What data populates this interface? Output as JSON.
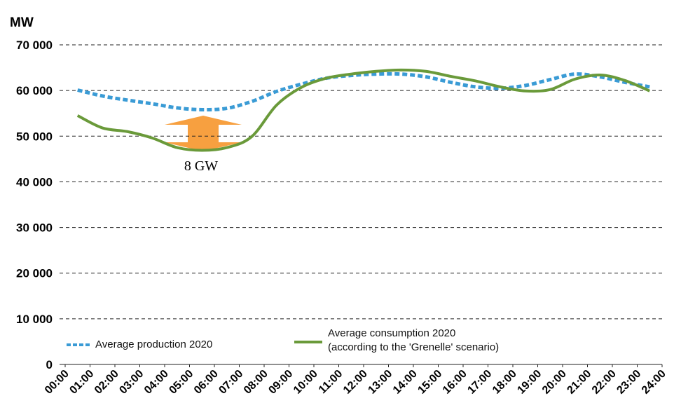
{
  "chart_data": {
    "type": "line",
    "ylabel": "MW",
    "x": [
      0.5,
      1.5,
      2.5,
      3.5,
      4.5,
      5.5,
      6.5,
      7.5,
      8.5,
      9.5,
      10.5,
      11.5,
      12.5,
      13.5,
      14.5,
      15.5,
      16.5,
      17.5,
      18.5,
      19.5,
      20.5,
      21.5,
      22.5,
      23.5
    ],
    "series": [
      {
        "name": "Average production 2020",
        "color": "#3a9bd5",
        "dash": true,
        "values": [
          60100,
          58800,
          57900,
          57100,
          56200,
          55800,
          56100,
          57600,
          59800,
          61400,
          62700,
          63300,
          63600,
          63600,
          63000,
          61800,
          60800,
          60500,
          61100,
          62400,
          63600,
          63000,
          61800,
          60800
        ]
      },
      {
        "name": "Average consumption 2020\n(according to the 'Grenelle' scenario)",
        "color": "#6a9a3a",
        "dash": false,
        "values": [
          54500,
          51800,
          51000,
          49600,
          47500,
          46900,
          47500,
          49900,
          56800,
          60700,
          62700,
          63600,
          64200,
          64500,
          64200,
          63100,
          62100,
          60800,
          59900,
          60200,
          62500,
          63400,
          62200,
          59900
        ]
      }
    ],
    "annotation": "8 GW",
    "xlim": [
      0,
      24
    ],
    "xticks": [
      {
        "value": 0,
        "label": "00:00"
      },
      {
        "value": 1,
        "label": "01:00"
      },
      {
        "value": 2,
        "label": "02:00"
      },
      {
        "value": 3,
        "label": "03:00"
      },
      {
        "value": 4,
        "label": "04:00"
      },
      {
        "value": 5,
        "label": "05:00"
      },
      {
        "value": 6,
        "label": "06:00"
      },
      {
        "value": 7,
        "label": "07:00"
      },
      {
        "value": 8,
        "label": "08:00"
      },
      {
        "value": 9,
        "label": "09:00"
      },
      {
        "value": 10,
        "label": "10:00"
      },
      {
        "value": 11,
        "label": "11:00"
      },
      {
        "value": 12,
        "label": "12:00"
      },
      {
        "value": 13,
        "label": "13:00"
      },
      {
        "value": 14,
        "label": "14:00"
      },
      {
        "value": 15,
        "label": "15:00"
      },
      {
        "value": 16,
        "label": "16:00"
      },
      {
        "value": 17,
        "label": "17:00"
      },
      {
        "value": 18,
        "label": "18:00"
      },
      {
        "value": 19,
        "label": "19:00"
      },
      {
        "value": 20,
        "label": "20:00"
      },
      {
        "value": 21,
        "label": "21:00"
      },
      {
        "value": 22,
        "label": "22:00"
      },
      {
        "value": 23,
        "label": "23:00"
      },
      {
        "value": 24,
        "label": "24:00"
      }
    ],
    "ylim": [
      0,
      70000
    ],
    "yticks": [
      0,
      {
        "value": 10000,
        "label": "10 000"
      },
      {
        "value": 20000,
        "label": "20 000"
      },
      {
        "value": 30000,
        "label": "30 000"
      },
      {
        "value": 40000,
        "label": "40 000"
      },
      {
        "value": 50000,
        "label": "50 000"
      },
      {
        "value": 60000,
        "label": "60 000"
      },
      {
        "value": 70000,
        "label": "70 000"
      }
    ],
    "grid": true
  }
}
